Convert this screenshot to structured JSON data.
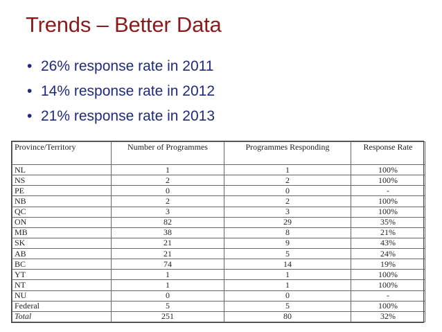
{
  "slide": {
    "title": "Trends – Better Data",
    "bullets": [
      "26% response rate in 2011",
      "14% response rate in 2012",
      "21% response rate in 2013"
    ],
    "bullet_glyph": "•"
  },
  "table": {
    "headers": [
      "Province/Territory",
      "Number of Programmes",
      "Programmes Responding",
      "Response Rate"
    ],
    "rows": [
      [
        "NL",
        "1",
        "1",
        "100%"
      ],
      [
        "NS",
        "2",
        "2",
        "100%"
      ],
      [
        "PE",
        "0",
        "0",
        "-"
      ],
      [
        "NB",
        "2",
        "2",
        "100%"
      ],
      [
        "QC",
        "3",
        "3",
        "100%"
      ],
      [
        "ON",
        "82",
        "29",
        "35%"
      ],
      [
        "MB",
        "38",
        "8",
        "21%"
      ],
      [
        "SK",
        "21",
        "9",
        "43%"
      ],
      [
        "AB",
        "21",
        "5",
        "24%"
      ],
      [
        "BC",
        "74",
        "14",
        "19%"
      ],
      [
        "YT",
        "1",
        "1",
        "100%"
      ],
      [
        "NT",
        "1",
        "1",
        "100%"
      ],
      [
        "NU",
        "0",
        "0",
        "-"
      ],
      [
        "Federal",
        "5",
        "5",
        "100%"
      ]
    ],
    "total": [
      "Total",
      "251",
      "80",
      "32%"
    ]
  },
  "colors": {
    "title": "#8b1a1a",
    "bullets": "#1f2a7a"
  }
}
